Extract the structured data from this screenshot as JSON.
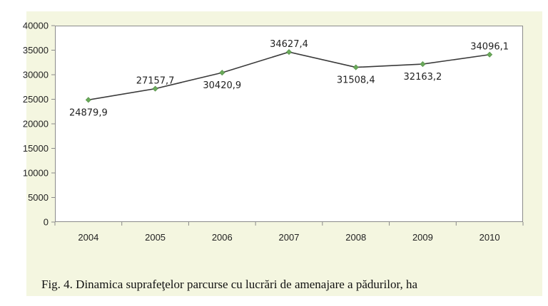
{
  "caption": "Fig. 4. Dinamica suprafeţelor parcurse cu lucrări de amenajare a pădurilor, ha",
  "chart_data": {
    "type": "line",
    "title": "",
    "xlabel": "",
    "ylabel": "",
    "categories": [
      "2004",
      "2005",
      "2006",
      "2007",
      "2008",
      "2009",
      "2010"
    ],
    "series": [
      {
        "values": [
          24879.9,
          27157.7,
          30420.9,
          34627.4,
          31508.4,
          32163.2,
          34096.1
        ]
      }
    ],
    "data_labels": [
      "24879,9",
      "27157,7",
      "30420,9",
      "34627,4",
      "31508,4",
      "32163,2",
      "34096,1"
    ],
    "y_ticks": [
      "0",
      "5000",
      "10000",
      "15000",
      "20000",
      "25000",
      "30000",
      "35000",
      "40000"
    ],
    "ylim": [
      0,
      40000
    ],
    "grid": false,
    "legend": "none",
    "colors": {
      "line": "#3a3a3a",
      "marker": "#6aaa5a",
      "background": "#f4f6e0"
    }
  }
}
